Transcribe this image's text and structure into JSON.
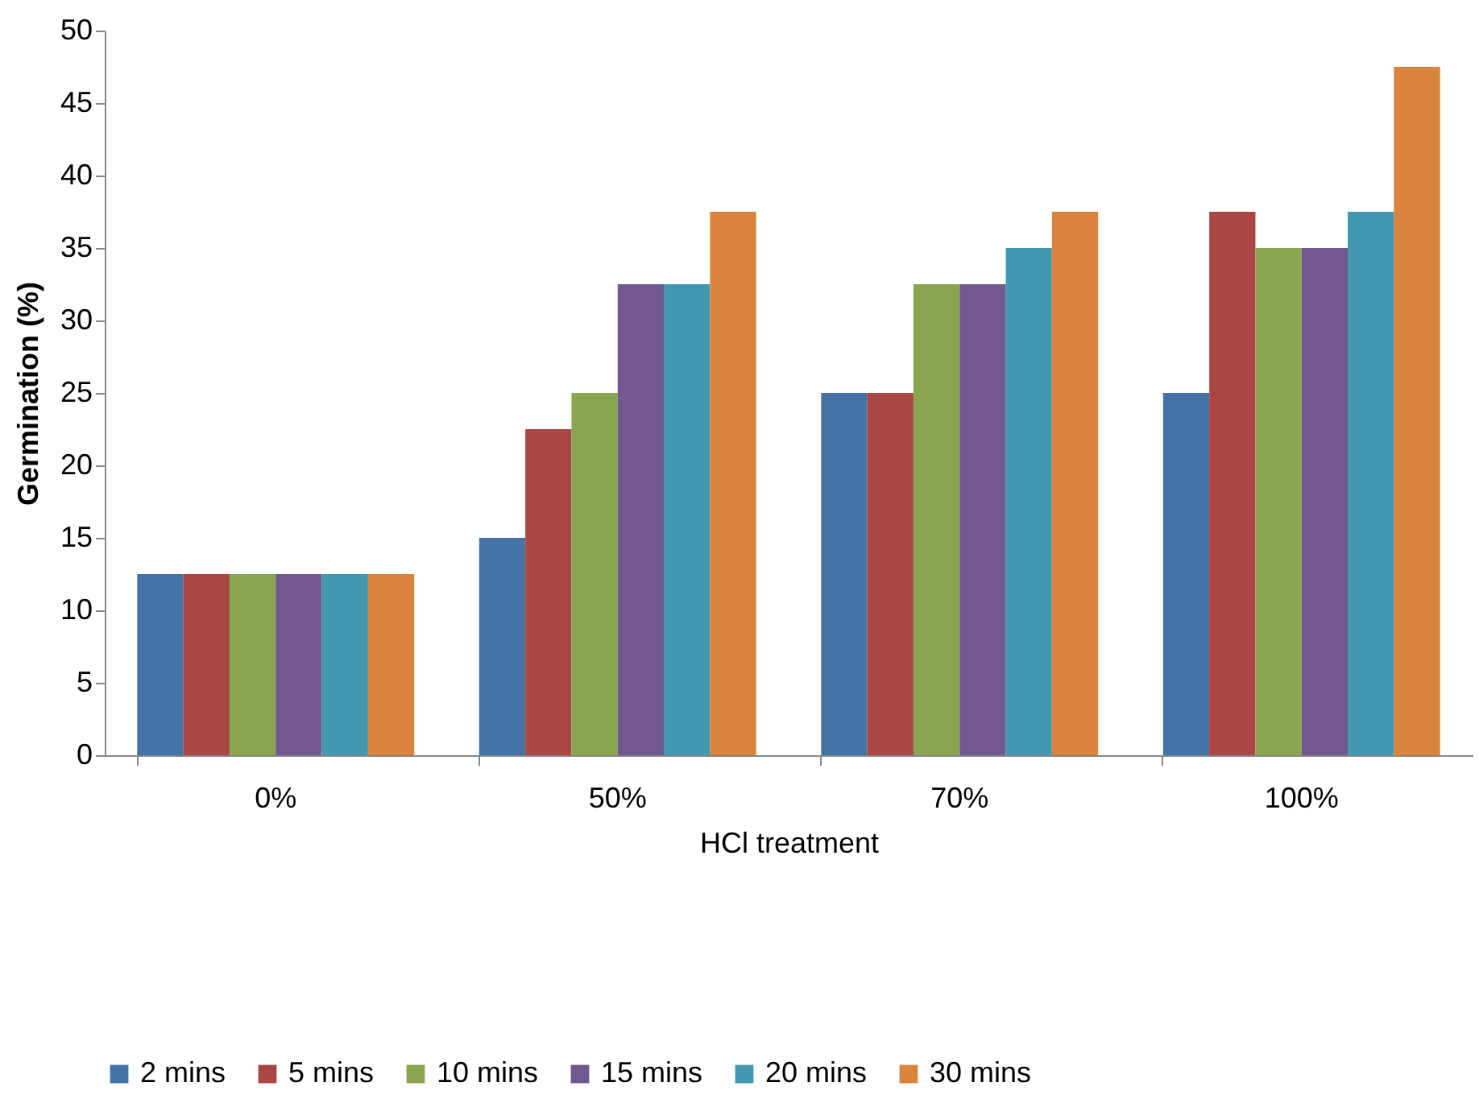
{
  "chart_data": {
    "type": "bar",
    "xlabel": "HCl treatment",
    "ylabel": "Germination (%)",
    "categories": [
      "0%",
      "50%",
      "70%",
      "100%"
    ],
    "series": [
      {
        "name": "2 mins",
        "color": "#4572a7",
        "values": [
          12.5,
          15,
          25,
          25
        ]
      },
      {
        "name": "5 mins",
        "color": "#aa4643",
        "values": [
          12.5,
          22.5,
          25,
          37.5
        ]
      },
      {
        "name": "10 mins",
        "color": "#89a54e",
        "values": [
          12.5,
          25,
          32.5,
          35
        ]
      },
      {
        "name": "15 mins",
        "color": "#71588f",
        "values": [
          12.5,
          32.5,
          32.5,
          35
        ]
      },
      {
        "name": "20 mins",
        "color": "#4198af",
        "values": [
          12.5,
          32.5,
          35,
          37.5
        ]
      },
      {
        "name": "30 mins",
        "color": "#db843d",
        "values": [
          12.5,
          37.5,
          37.5,
          47.5
        ]
      }
    ],
    "ylim": [
      0,
      50
    ],
    "yticks": [
      0,
      5,
      10,
      15,
      20,
      25,
      30,
      35,
      40,
      45,
      50
    ],
    "grid": false,
    "legend": "bottom"
  }
}
